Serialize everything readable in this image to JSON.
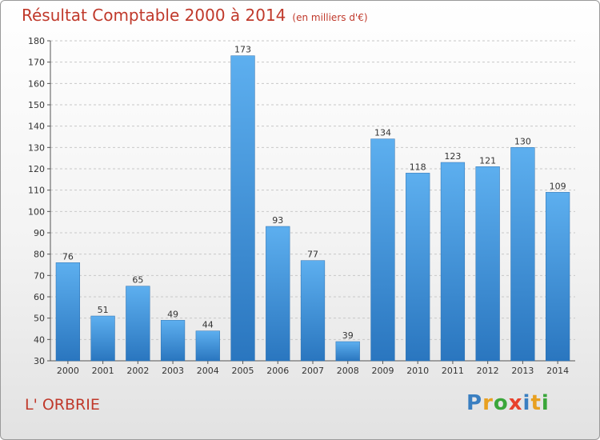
{
  "title": "Résultat Comptable 2000 à 2014",
  "unit": "(en milliers d'€)",
  "commune": "L' ORBRIE",
  "logo": {
    "text": "Proxiti",
    "letter_colors": [
      "#3a7fc1",
      "#e8a020",
      "#3aa63a",
      "#e8412c",
      "#3a7fc1",
      "#e8a020",
      "#3aa63a"
    ]
  },
  "chart_data": {
    "type": "bar",
    "categories": [
      "2000",
      "2001",
      "2002",
      "2003",
      "2004",
      "2005",
      "2006",
      "2007",
      "2008",
      "2009",
      "2010",
      "2011",
      "2012",
      "2013",
      "2014"
    ],
    "values": [
      76,
      51,
      65,
      49,
      44,
      173,
      93,
      77,
      39,
      134,
      118,
      123,
      121,
      130,
      109
    ],
    "ylim": [
      30,
      180
    ],
    "yticks": [
      30,
      40,
      50,
      60,
      70,
      80,
      90,
      100,
      110,
      120,
      130,
      140,
      150,
      160,
      170,
      180
    ],
    "grid": true,
    "bar_color": "#3d8fd6"
  }
}
